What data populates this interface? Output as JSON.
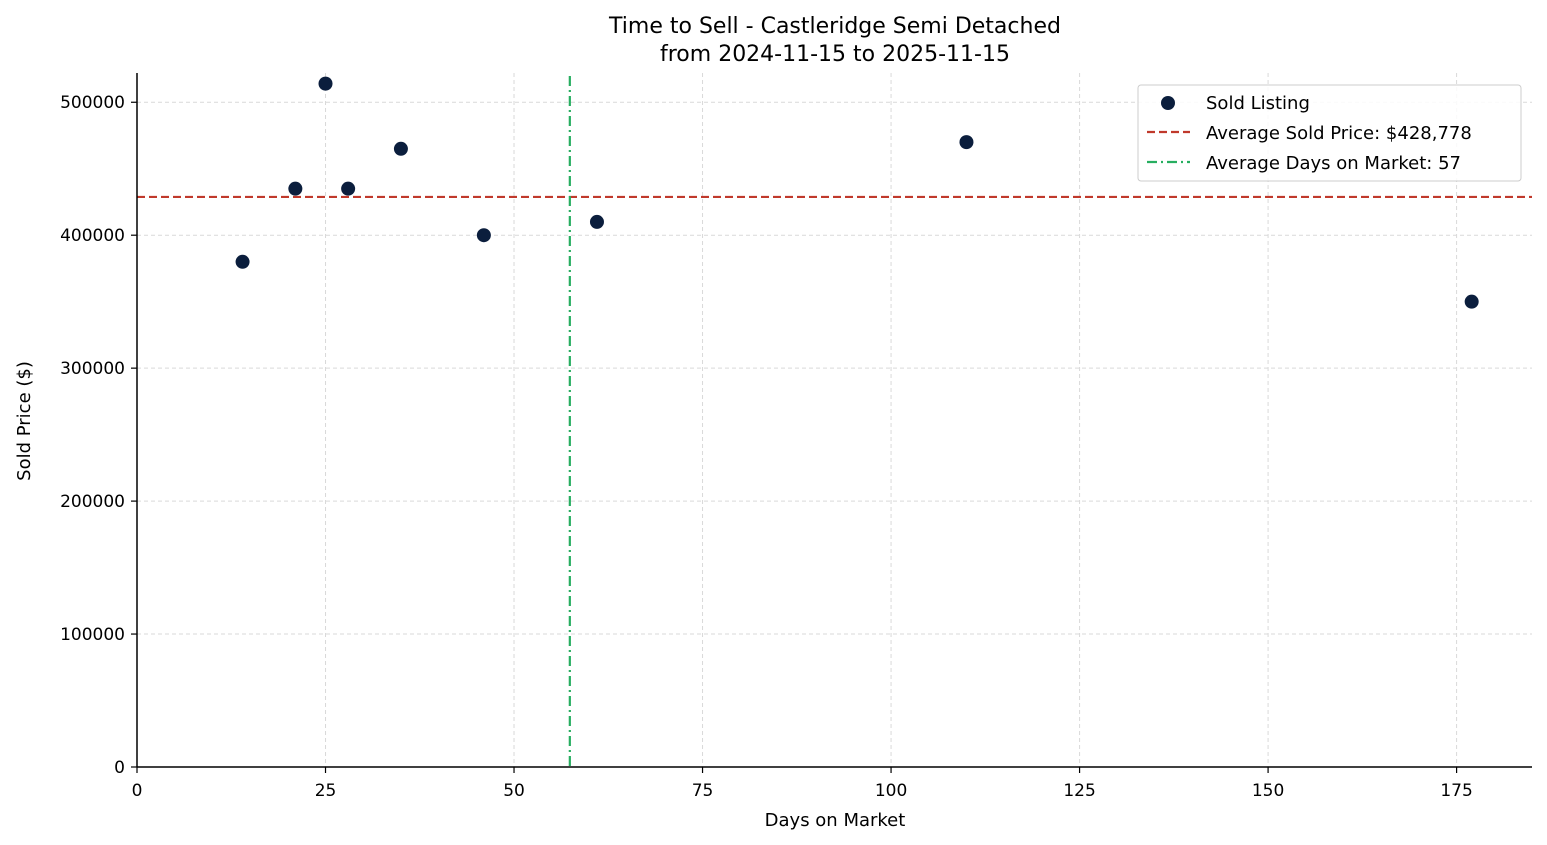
{
  "chart_data": {
    "type": "scatter",
    "title_line1": "Time to Sell - Castleridge Semi Detached",
    "title_line2": "from 2024-11-15 to 2025-11-15",
    "xlabel": "Days on Market",
    "ylabel": "Sold Price ($)",
    "xlim": [
      0,
      185
    ],
    "ylim": [
      0,
      522000
    ],
    "x_ticks": [
      0,
      25,
      50,
      75,
      100,
      125,
      150,
      175
    ],
    "y_ticks": [
      0,
      100000,
      200000,
      300000,
      400000,
      500000
    ],
    "grid": true,
    "series": [
      {
        "name": "Sold Listing",
        "x": [
          14,
          21,
          25,
          28,
          35,
          46,
          61,
          110,
          177
        ],
        "y": [
          380000,
          435000,
          514000,
          435000,
          465000,
          400000,
          410000,
          470000,
          350000
        ]
      }
    ],
    "avg_price": 428778,
    "avg_days": 57.4,
    "legend": {
      "position": "top-right",
      "entries": [
        "Sold Listing",
        "Average Sold Price: $428,778",
        "Average Days on Market: 57"
      ]
    },
    "colors": {
      "points": "#0b1e3d",
      "avg_price_line": "#c0392b",
      "avg_days_line": "#27ae60",
      "axis": "#000000",
      "grid": "#d9d9d9"
    }
  }
}
